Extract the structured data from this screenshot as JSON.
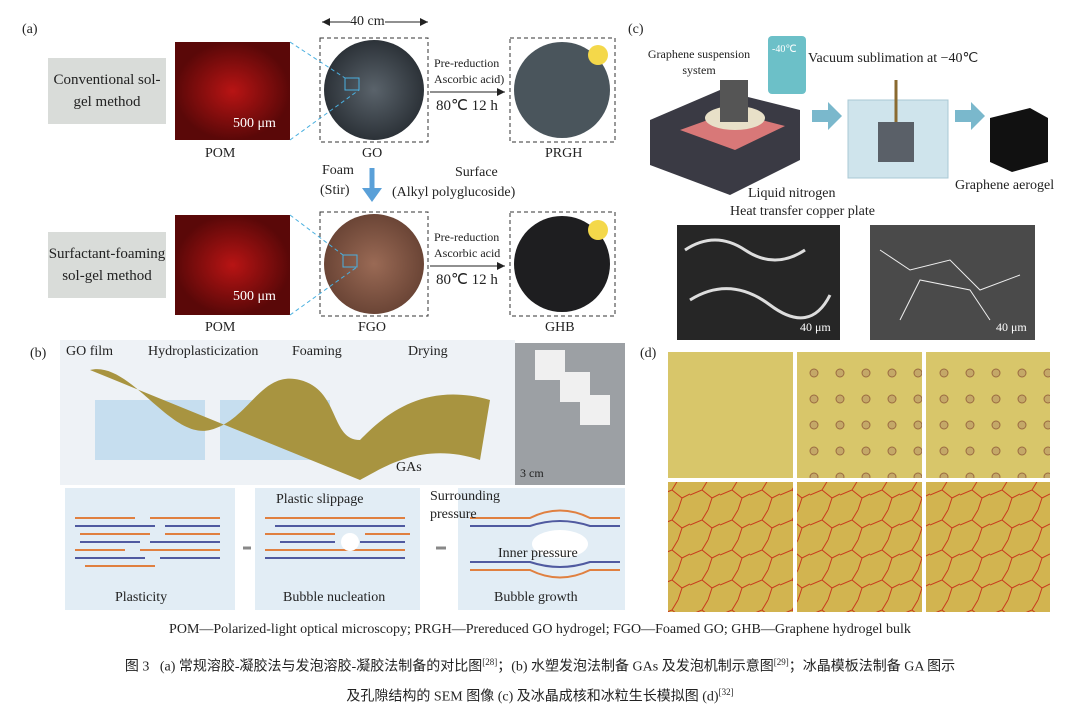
{
  "panel_a": {
    "label": "(a)",
    "row1": {
      "method": "Conventional sol-gel method",
      "scale": "500 μm",
      "pom": "POM",
      "product": "GO",
      "product2": "PRGH"
    },
    "width": "40 cm",
    "step1": "Pre-reduction",
    "step2": "Ascorbic acid)",
    "condition": "80℃  12 h",
    "foam": "Foam",
    "stir": "(Stir)",
    "surface": "Surface",
    "surfactant": "(Alkyl polyglucoside)",
    "row2": {
      "method": "Surfactant-foaming sol-gel method",
      "scale": "500 μm",
      "pom": "POM",
      "product": "FGO",
      "product2": "GHB",
      "step1": "Pre-reduction",
      "step2": "Ascorbic acid",
      "condition": "80℃  12 h"
    }
  },
  "panel_c": {
    "label": "(c)",
    "suspension": "Graphene suspension system",
    "device": "-40℃",
    "sublimation": "Vacuum sublimation at −40℃",
    "nitrogen": "Liquid nitrogen",
    "plate": "Heat transfer copper plate",
    "aerogel": "Graphene aerogel",
    "scale1": "40 μm",
    "scale2": "40 μm"
  },
  "panel_b": {
    "label": "(b)",
    "film": "GO film",
    "hydro": "Hydroplasticization",
    "foaming": "Foaming",
    "drying": "Drying",
    "gas": "GAs",
    "scale": "3 cm",
    "slippage": "Plastic slippage",
    "surrounding": "Surrounding pressure",
    "inner": "Inner pressure",
    "stage1": "Plasticity",
    "stage2": "Bubble nucleation",
    "stage3": "Bubble growth"
  },
  "panel_d": {
    "label": "(d)"
  },
  "abbreviations": "POM—Polarized-light optical microscopy; PRGH—Prereduced GO hydrogel; FGO—Foamed GO; GHB—Graphene hydrogel bulk",
  "caption": {
    "figure": "图 3",
    "part_a": "(a) 常规溶胶-凝胶法与发泡溶胶-凝胶法制备的对比图",
    "ref_a": "[28]",
    "part_b": "；(b) 水塑发泡法制备 GAs 及发泡机制示意图",
    "ref_b": "[29]",
    "part_cd": "；冰晶模板法制备 GA 图示及孔隙结构的 SEM 图像 (c) 及冰晶成核和冰粒生长模拟图 (d)",
    "ref_cd": "[32]"
  }
}
